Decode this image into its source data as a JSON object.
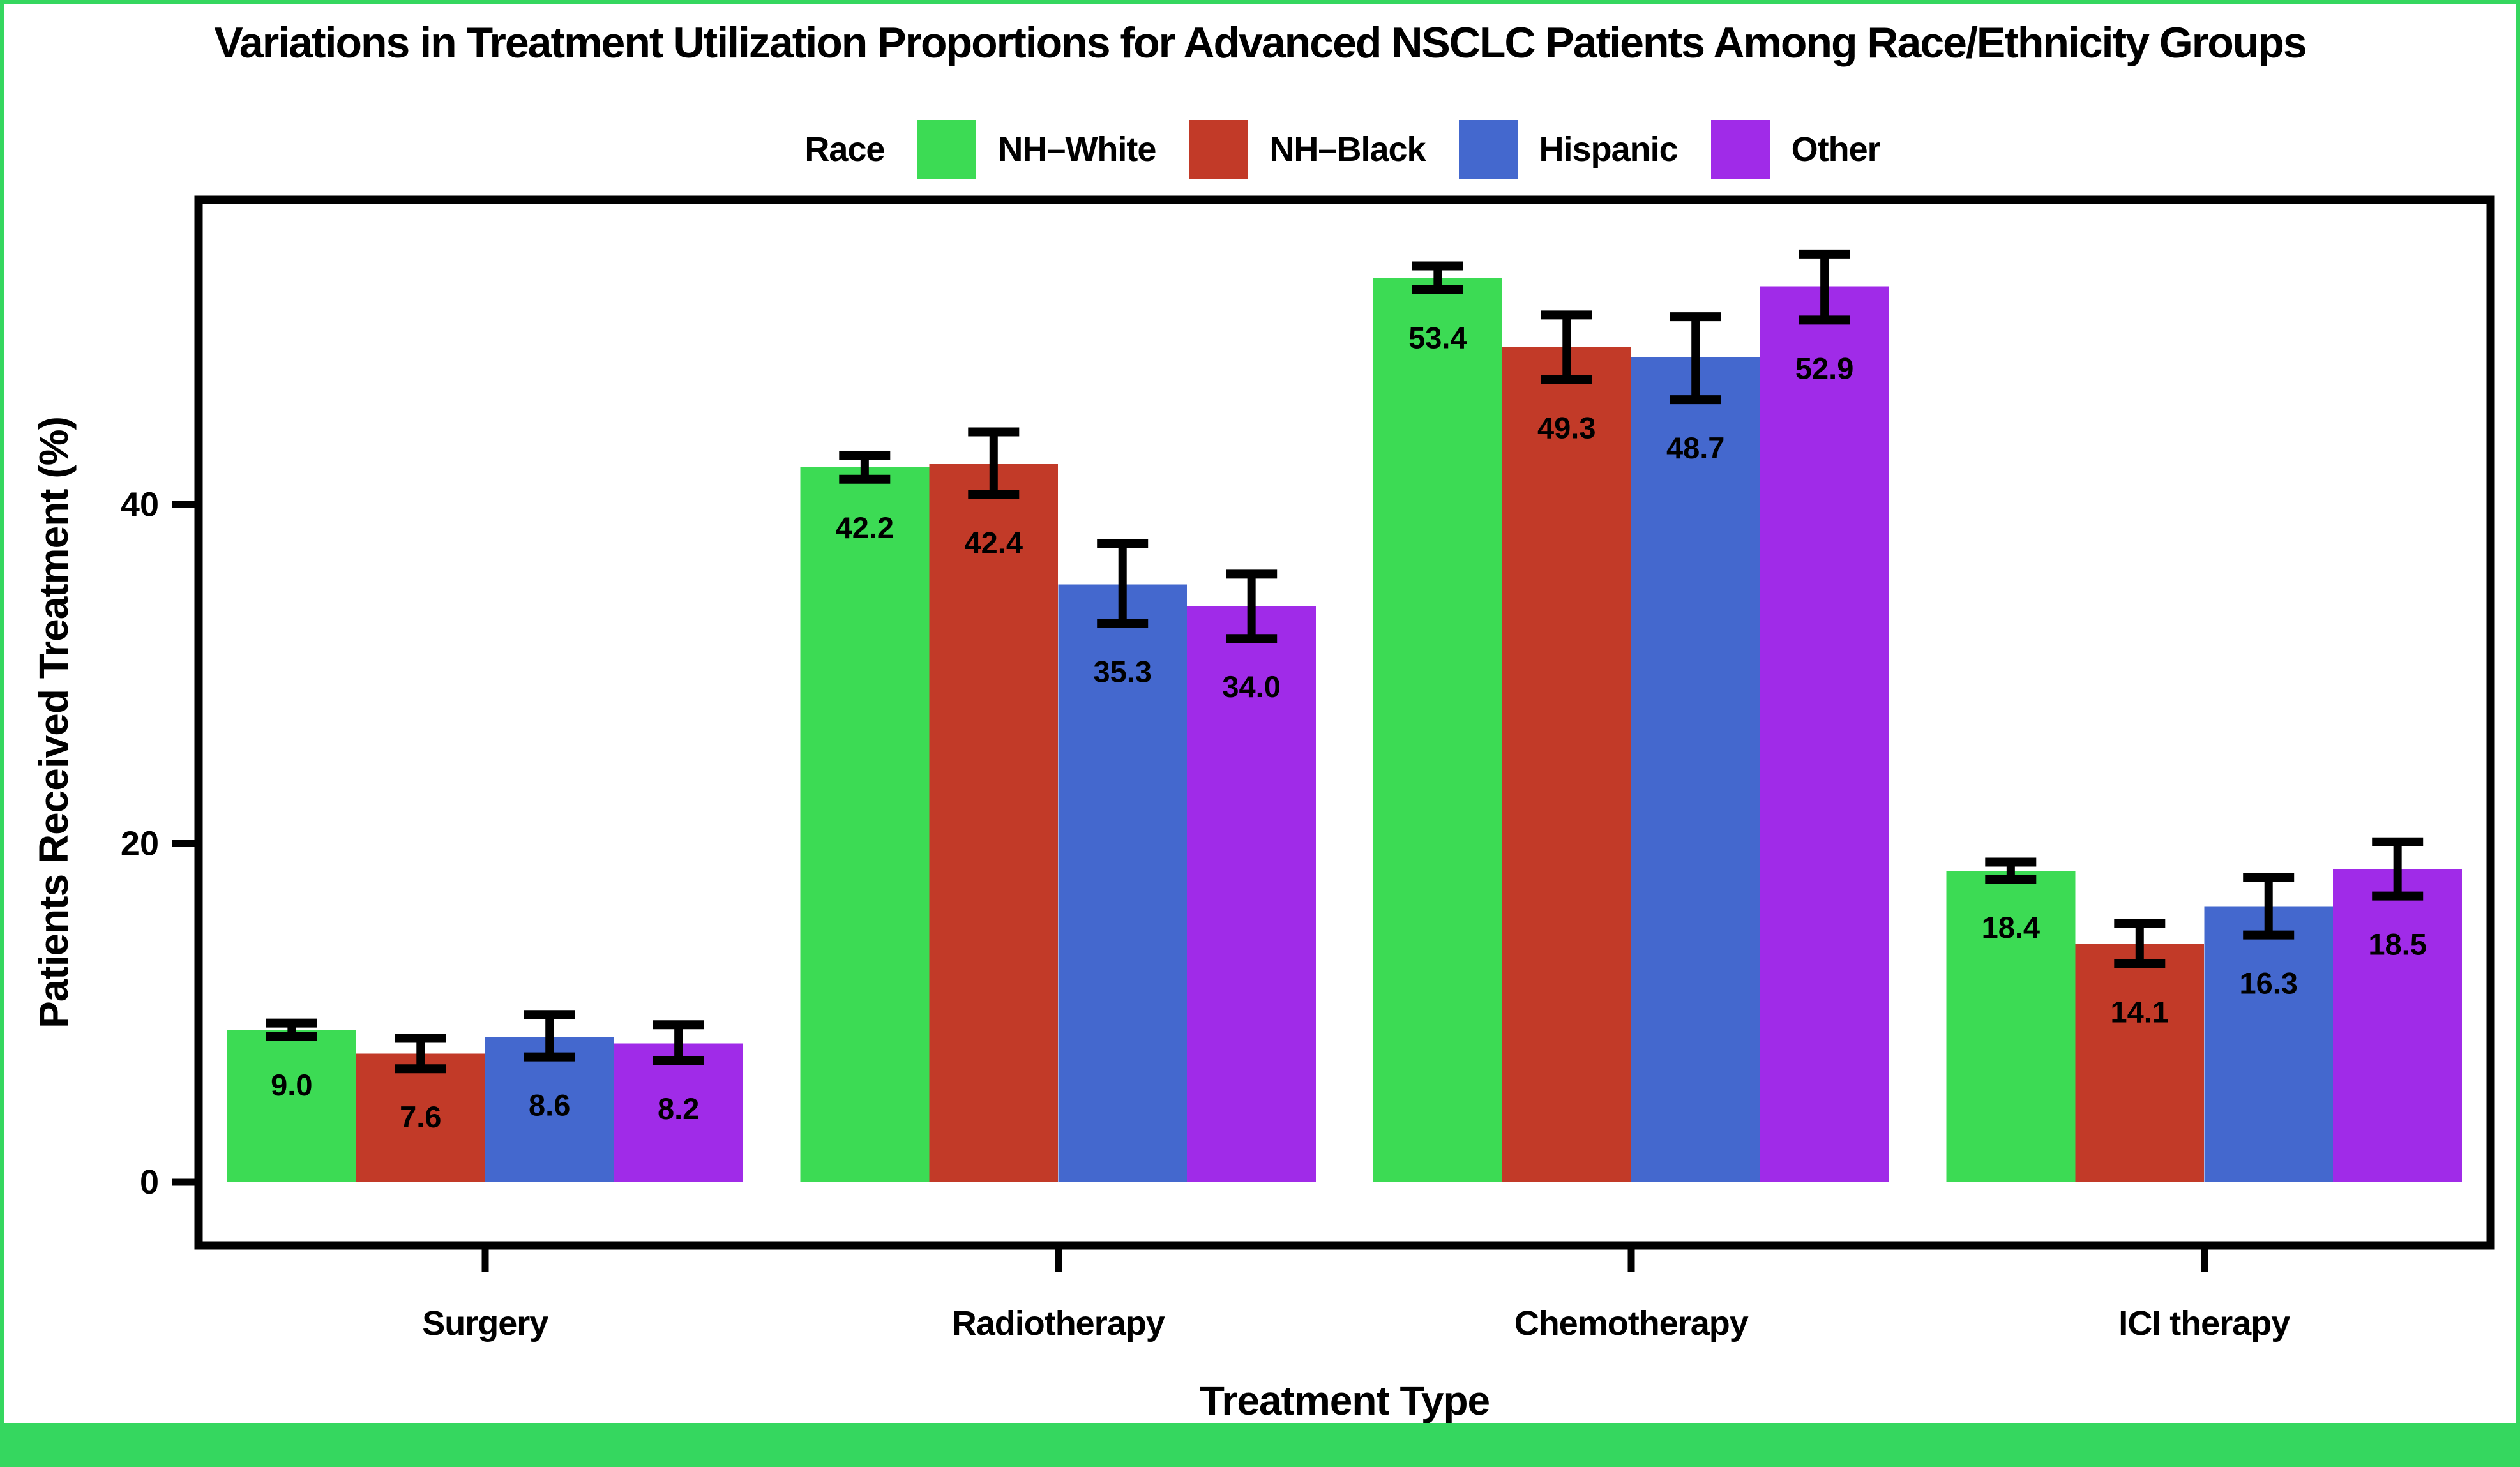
{
  "figure": {
    "title": "Variations in Treatment Utilization Proportions for Advanced NSCLC Patients Among Race/Ethnicity Groups",
    "frame_color": "#35d75f",
    "footer_bar_color": "#35d75f",
    "panel_border_color": "#000000",
    "background_color": "#ffffff"
  },
  "legend": {
    "title": "Race",
    "entries": [
      {
        "label": "NH–White",
        "color": "#3cdb54"
      },
      {
        "label": "NH–Black",
        "color": "#c23a28"
      },
      {
        "label": "Hispanic",
        "color": "#4468ce"
      },
      {
        "label": "Other",
        "color": "#a02be8"
      }
    ]
  },
  "chart_data": {
    "type": "bar",
    "variant": "grouped-vertical-with-error-bars",
    "title": "Variations in Treatment Utilization Proportions for Advanced NSCLC Patients Among Race/Ethnicity Groups",
    "xlabel": "Treatment Type",
    "ylabel": "Patients Received Treatment (%)",
    "categories": [
      "Surgery",
      "Radiotherapy",
      "Chemotherapy",
      "ICI therapy"
    ],
    "yticks": [
      0,
      20,
      40
    ],
    "ylim": [
      0,
      58
    ],
    "grid": false,
    "legend_position": "top",
    "series": [
      {
        "name": "NH–White",
        "color": "#3cdb54",
        "values": [
          9.0,
          42.2,
          53.4,
          18.4
        ],
        "error_low": [
          8.6,
          41.5,
          52.7,
          17.9
        ],
        "error_high": [
          9.4,
          42.9,
          54.1,
          18.9
        ]
      },
      {
        "name": "NH–Black",
        "color": "#c23a28",
        "values": [
          7.6,
          42.4,
          49.3,
          14.1
        ],
        "error_low": [
          6.7,
          40.6,
          47.4,
          12.9
        ],
        "error_high": [
          8.5,
          44.3,
          51.2,
          15.3
        ]
      },
      {
        "name": "Hispanic",
        "color": "#4468ce",
        "values": [
          8.6,
          35.3,
          48.7,
          16.3
        ],
        "error_low": [
          7.4,
          33.0,
          46.2,
          14.6
        ],
        "error_high": [
          9.9,
          37.7,
          51.1,
          18.0
        ]
      },
      {
        "name": "Other",
        "color": "#a02be8",
        "values": [
          8.2,
          34.0,
          52.9,
          18.5
        ],
        "error_low": [
          7.2,
          32.1,
          50.9,
          16.9
        ],
        "error_high": [
          9.3,
          35.9,
          54.8,
          20.1
        ]
      }
    ]
  }
}
